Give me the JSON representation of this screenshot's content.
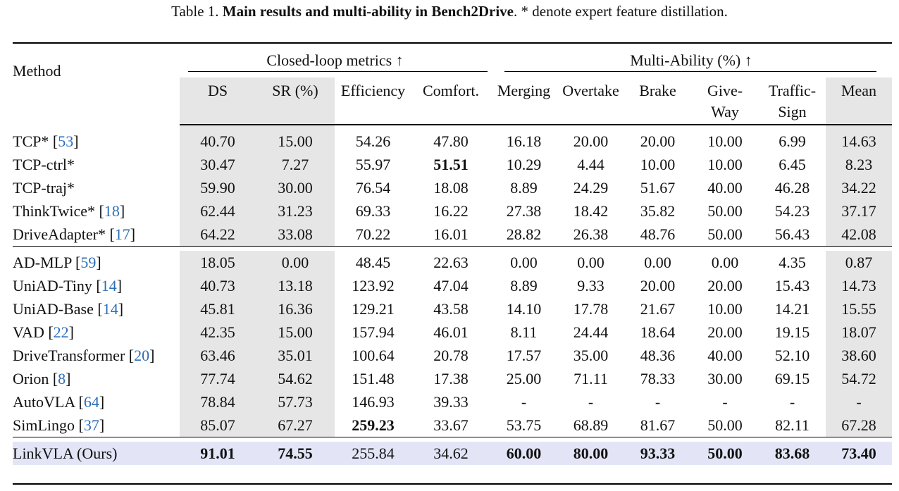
{
  "caption": {
    "prefix": "Table 1.",
    "title": "Main results and multi-ability in Bench2Drive",
    "suffix": ". * denote expert feature distillation."
  },
  "header": {
    "method": "Method",
    "group_closed": "Closed-loop metrics ↑",
    "group_multi": "Multi-Ability (%) ↑",
    "cols": [
      "DS",
      "SR (%)",
      "Efficiency",
      "Comfort.",
      "Merging",
      "Overtake",
      "Brake"
    ],
    "give_line1": "Give-",
    "give_line2": "Way",
    "traffic_line1": "Traffic-",
    "traffic_line2": "Sign",
    "mean": "Mean"
  },
  "group1": [
    {
      "name": "TCP* [",
      "ref": "53",
      "close": "]",
      "v": [
        "40.70",
        "15.00",
        "54.26",
        "47.80",
        "16.18",
        "20.00",
        "20.00",
        "10.00",
        "6.99",
        "14.63"
      ]
    },
    {
      "name": "TCP-ctrl*",
      "ref": "",
      "close": "",
      "v": [
        "30.47",
        "7.27",
        "55.97",
        "51.51",
        "10.29",
        "4.44",
        "10.00",
        "10.00",
        "6.45",
        "8.23"
      ]
    },
    {
      "name": "TCP-traj*",
      "ref": "",
      "close": "",
      "v": [
        "59.90",
        "30.00",
        "76.54",
        "18.08",
        "8.89",
        "24.29",
        "51.67",
        "40.00",
        "46.28",
        "34.22"
      ]
    },
    {
      "name": "ThinkTwice* [",
      "ref": "18",
      "close": "]",
      "v": [
        "62.44",
        "31.23",
        "69.33",
        "16.22",
        "27.38",
        "18.42",
        "35.82",
        "50.00",
        "54.23",
        "37.17"
      ]
    },
    {
      "name": "DriveAdapter* [",
      "ref": "17",
      "close": "]",
      "v": [
        "64.22",
        "33.08",
        "70.22",
        "16.01",
        "28.82",
        "26.38",
        "48.76",
        "50.00",
        "56.43",
        "42.08"
      ]
    }
  ],
  "group2": [
    {
      "name": "AD-MLP [",
      "ref": "59",
      "close": "]",
      "v": [
        "18.05",
        "0.00",
        "48.45",
        "22.63",
        "0.00",
        "0.00",
        "0.00",
        "0.00",
        "4.35",
        "0.87"
      ]
    },
    {
      "name": "UniAD-Tiny [",
      "ref": "14",
      "close": "]",
      "v": [
        "40.73",
        "13.18",
        "123.92",
        "47.04",
        "8.89",
        "9.33",
        "20.00",
        "20.00",
        "15.43",
        "14.73"
      ]
    },
    {
      "name": "UniAD-Base [",
      "ref": "14",
      "close": "]",
      "v": [
        "45.81",
        "16.36",
        "129.21",
        "43.58",
        "14.10",
        "17.78",
        "21.67",
        "10.00",
        "14.21",
        "15.55"
      ]
    },
    {
      "name": "VAD [",
      "ref": "22",
      "close": "]",
      "v": [
        "42.35",
        "15.00",
        "157.94",
        "46.01",
        "8.11",
        "24.44",
        "18.64",
        "20.00",
        "19.15",
        "18.07"
      ]
    },
    {
      "name": "DriveTransformer [",
      "ref": "20",
      "close": "]",
      "v": [
        "63.46",
        "35.01",
        "100.64",
        "20.78",
        "17.57",
        "35.00",
        "48.36",
        "40.00",
        "52.10",
        "38.60"
      ]
    },
    {
      "name": "Orion [",
      "ref": "8",
      "close": "]",
      "v": [
        "77.74",
        "54.62",
        "151.48",
        "17.38",
        "25.00",
        "71.11",
        "78.33",
        "30.00",
        "69.15",
        "54.72"
      ]
    },
    {
      "name": "AutoVLA [",
      "ref": "64",
      "close": "]",
      "v": [
        "78.84",
        "57.73",
        "146.93",
        "39.33",
        "-",
        "-",
        "-",
        "-",
        "-",
        "-"
      ]
    },
    {
      "name": "SimLingo [",
      "ref": "37",
      "close": "]",
      "v": [
        "85.07",
        "67.27",
        "259.23",
        "33.67",
        "53.75",
        "68.89",
        "81.67",
        "50.00",
        "82.11",
        "67.28"
      ]
    }
  ],
  "ours": {
    "name": "LinkVLA (Ours)",
    "v": [
      "91.01",
      "74.55",
      "255.84",
      "34.62",
      "60.00",
      "80.00",
      "93.33",
      "50.00",
      "83.68",
      "73.40"
    ]
  }
}
